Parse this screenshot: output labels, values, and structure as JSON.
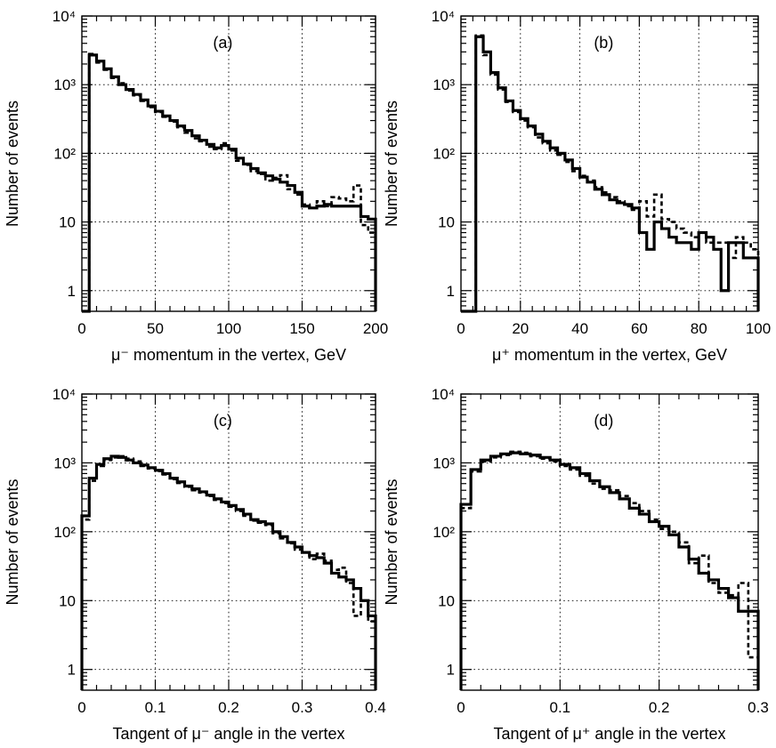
{
  "chart_data": [
    {
      "type": "line",
      "panel_label": "(a)",
      "xlabel": "μ⁻ momentum in the vertex, GeV",
      "ylabel": "Number of events",
      "xlim": [
        0,
        200
      ],
      "ylim": [
        0.5,
        10000
      ],
      "yscale": "log",
      "grid": true,
      "xticks": [
        0,
        50,
        100,
        150,
        200
      ],
      "xtick_labels": [
        "0",
        "50",
        "100",
        "150",
        "200"
      ],
      "yticks": [
        1,
        10,
        100,
        1000,
        10000
      ],
      "ytick_labels": [
        "1",
        "10",
        "10²",
        "10³",
        "10⁴"
      ],
      "bin_edges": [
        0,
        5,
        10,
        15,
        20,
        25,
        30,
        35,
        40,
        45,
        50,
        55,
        60,
        65,
        70,
        75,
        80,
        85,
        90,
        95,
        100,
        105,
        110,
        115,
        120,
        125,
        130,
        135,
        140,
        145,
        150,
        155,
        160,
        165,
        170,
        175,
        180,
        185,
        190,
        195,
        200
      ],
      "series": [
        {
          "style": "solid",
          "values": [
            0,
            2700,
            2200,
            1700,
            1300,
            1000,
            850,
            720,
            600,
            490,
            410,
            350,
            300,
            250,
            215,
            180,
            155,
            135,
            120,
            130,
            115,
            85,
            70,
            60,
            52,
            47,
            42,
            38,
            34,
            27,
            17,
            16,
            17,
            18,
            17,
            17,
            17,
            17,
            12,
            11
          ]
        },
        {
          "style": "dashed",
          "values": [
            0,
            2800,
            2100,
            1650,
            1250,
            1050,
            820,
            700,
            580,
            470,
            400,
            340,
            290,
            240,
            200,
            165,
            150,
            125,
            115,
            140,
            110,
            78,
            68,
            55,
            50,
            40,
            44,
            48,
            30,
            25,
            18,
            16,
            20,
            17,
            23,
            22,
            20,
            34,
            9,
            7
          ]
        }
      ]
    },
    {
      "type": "line",
      "panel_label": "(b)",
      "xlabel": "μ⁺ momentum in the vertex, GeV",
      "ylabel": "Number of events",
      "xlim": [
        0,
        100
      ],
      "ylim": [
        0.5,
        10000
      ],
      "yscale": "log",
      "grid": true,
      "xticks": [
        0,
        20,
        40,
        60,
        80,
        100
      ],
      "xtick_labels": [
        "0",
        "20",
        "40",
        "60",
        "80",
        "100"
      ],
      "yticks": [
        1,
        10,
        100,
        1000,
        10000
      ],
      "ytick_labels": [
        "1",
        "10",
        "10²",
        "10³",
        "10⁴"
      ],
      "bin_edges": [
        0,
        2.5,
        5,
        7.5,
        10,
        12.5,
        15,
        17.5,
        20,
        22.5,
        25,
        27.5,
        30,
        32.5,
        35,
        37.5,
        40,
        42.5,
        45,
        47.5,
        50,
        52.5,
        55,
        57.5,
        60,
        62.5,
        65,
        67.5,
        70,
        72.5,
        75,
        77.5,
        80,
        82.5,
        85,
        87.5,
        90,
        92.5,
        95,
        97.5,
        100
      ],
      "series": [
        {
          "style": "solid",
          "values": [
            0,
            0,
            5000,
            3000,
            1500,
            900,
            580,
            420,
            320,
            250,
            190,
            150,
            120,
            100,
            80,
            60,
            45,
            38,
            30,
            25,
            21,
            19,
            18,
            16,
            7,
            4,
            10,
            8,
            6,
            5,
            5,
            4,
            7,
            6,
            4,
            1,
            5,
            5,
            3,
            3
          ]
        },
        {
          "style": "dashed",
          "values": [
            0,
            0,
            5200,
            2700,
            1400,
            850,
            560,
            400,
            300,
            240,
            170,
            140,
            110,
            95,
            75,
            55,
            47,
            40,
            32,
            27,
            23,
            20,
            17,
            15,
            20,
            12,
            25,
            11,
            10,
            8,
            7,
            6,
            7,
            5,
            5,
            5,
            3,
            6,
            5,
            4
          ]
        }
      ]
    },
    {
      "type": "line",
      "panel_label": "(c)",
      "xlabel": "Tangent of μ⁻ angle in the vertex",
      "ylabel": "Number of events",
      "xlim": [
        0,
        0.4
      ],
      "ylim": [
        0.5,
        10000
      ],
      "yscale": "log",
      "grid": true,
      "xticks": [
        0,
        0.1,
        0.2,
        0.3,
        0.4
      ],
      "xtick_labels": [
        "0",
        "0.1",
        "0.2",
        "0.3",
        "0.4"
      ],
      "yticks": [
        1,
        10,
        100,
        1000,
        10000
      ],
      "ytick_labels": [
        "1",
        "10",
        "10²",
        "10³",
        "10⁴"
      ],
      "bin_edges": [
        0,
        0.01,
        0.02,
        0.03,
        0.04,
        0.05,
        0.06,
        0.07,
        0.08,
        0.09,
        0.1,
        0.11,
        0.12,
        0.13,
        0.14,
        0.15,
        0.16,
        0.17,
        0.18,
        0.19,
        0.2,
        0.21,
        0.22,
        0.23,
        0.24,
        0.25,
        0.26,
        0.27,
        0.28,
        0.29,
        0.3,
        0.31,
        0.32,
        0.33,
        0.34,
        0.35,
        0.36,
        0.37,
        0.38,
        0.39,
        0.4
      ],
      "series": [
        {
          "style": "solid",
          "values": [
            170,
            600,
            950,
            1150,
            1250,
            1200,
            1100,
            1000,
            930,
            850,
            780,
            700,
            600,
            530,
            460,
            420,
            380,
            340,
            300,
            270,
            240,
            210,
            180,
            150,
            140,
            130,
            100,
            85,
            70,
            60,
            50,
            45,
            42,
            35,
            25,
            22,
            20,
            15,
            10,
            6
          ]
        },
        {
          "style": "dashed",
          "values": [
            150,
            550,
            900,
            1100,
            1200,
            1250,
            1150,
            1050,
            900,
            830,
            760,
            680,
            580,
            510,
            450,
            400,
            370,
            330,
            290,
            260,
            230,
            200,
            170,
            145,
            135,
            125,
            95,
            80,
            68,
            55,
            50,
            40,
            48,
            38,
            28,
            30,
            18,
            6,
            10,
            5
          ]
        }
      ]
    },
    {
      "type": "line",
      "panel_label": "(d)",
      "xlabel": "Tangent of μ⁺ angle in the vertex",
      "ylabel": "Number of events",
      "xlim": [
        0,
        0.3
      ],
      "ylim": [
        0.5,
        10000
      ],
      "yscale": "log",
      "grid": true,
      "xticks": [
        0,
        0.1,
        0.2,
        0.3
      ],
      "xtick_labels": [
        "0",
        "0.1",
        "0.2",
        "0.3"
      ],
      "yticks": [
        1,
        10,
        100,
        1000,
        10000
      ],
      "ytick_labels": [
        "1",
        "10",
        "10²",
        "10³",
        "10⁴"
      ],
      "bin_edges": [
        0,
        0.01,
        0.02,
        0.03,
        0.04,
        0.05,
        0.06,
        0.07,
        0.08,
        0.09,
        0.1,
        0.11,
        0.12,
        0.13,
        0.14,
        0.15,
        0.16,
        0.17,
        0.18,
        0.19,
        0.2,
        0.21,
        0.22,
        0.23,
        0.24,
        0.25,
        0.26,
        0.27,
        0.28,
        0.29,
        0.3
      ],
      "series": [
        {
          "style": "solid",
          "values": [
            250,
            800,
            1100,
            1250,
            1350,
            1400,
            1350,
            1300,
            1200,
            1100,
            950,
            850,
            700,
            550,
            450,
            370,
            300,
            220,
            180,
            140,
            120,
            90,
            60,
            40,
            25,
            20,
            15,
            11,
            7,
            7
          ]
        },
        {
          "style": "dashed",
          "values": [
            220,
            750,
            1050,
            1200,
            1300,
            1450,
            1400,
            1250,
            1150,
            1050,
            900,
            800,
            650,
            500,
            420,
            400,
            330,
            260,
            200,
            150,
            110,
            100,
            70,
            35,
            45,
            18,
            13,
            12,
            18,
            1.5
          ]
        }
      ]
    }
  ]
}
